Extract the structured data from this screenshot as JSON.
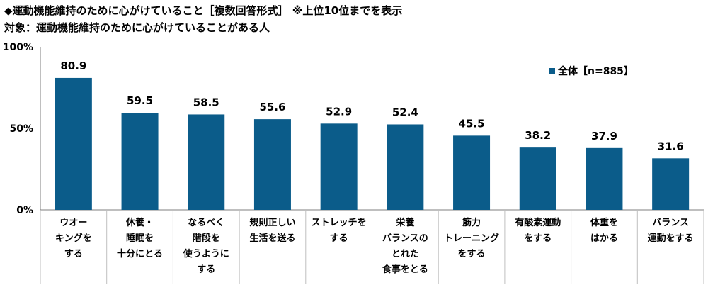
{
  "header": {
    "title": "◆運動機能維持のために心がけていること［複数回答形式］ ※上位10位までを表示",
    "subtitle": "対象：運動機能維持のために心がけていることがある人"
  },
  "colors": {
    "bar": "#0b5c8a",
    "grid": "#bfbfbf",
    "axis": "#7f7f7f"
  },
  "chart_data": {
    "type": "bar",
    "ylim": [
      0,
      100
    ],
    "yticks": [
      "0%",
      "50%",
      "100%"
    ],
    "ytick_values": [
      0,
      50,
      100
    ],
    "categories": [
      "ウオーキングをする",
      "休養・睡眠を十分にとる",
      "なるべく階段を使うようにする",
      "規則正しい生活を送る",
      "ストレッチをする",
      "栄養バランスのとれた食事をとる",
      "筋力トレーニングをする",
      "有酸素運動をする",
      "体重をはかる",
      "バランス運動をする"
    ],
    "category_lines": [
      [
        "ウオー",
        "キングを",
        "する"
      ],
      [
        "休養・",
        "睡眠を",
        "十分にとる"
      ],
      [
        "なるべく",
        "階段を",
        "使うように",
        "する"
      ],
      [
        "規則正しい",
        "生活を送る"
      ],
      [
        "ストレッチを",
        "する"
      ],
      [
        "栄養",
        "バランスの",
        "とれた",
        "食事をとる"
      ],
      [
        "筋力",
        "トレーニング",
        "をする"
      ],
      [
        "有酸素運動",
        "をする"
      ],
      [
        "体重を",
        "はかる"
      ],
      [
        "バランス",
        "運動をする"
      ]
    ],
    "series": [
      {
        "name": "全体【n=885】",
        "values": [
          80.9,
          59.5,
          58.5,
          55.6,
          52.9,
          52.4,
          45.5,
          38.2,
          37.9,
          31.6
        ]
      }
    ],
    "data_labels": [
      "80.9",
      "59.5",
      "58.5",
      "55.6",
      "52.9",
      "52.4",
      "45.5",
      "38.2",
      "37.9",
      "31.6"
    ],
    "legend": "top-right",
    "grid": false
  }
}
